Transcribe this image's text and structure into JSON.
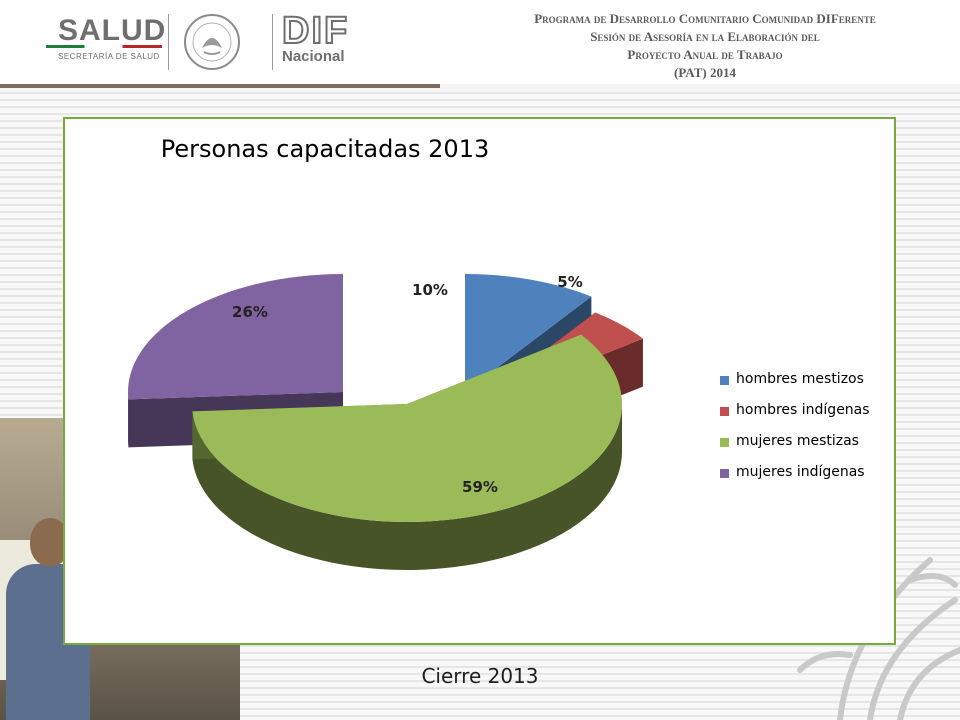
{
  "header": {
    "salud": "SALUD",
    "salud_sub": "SECRETARÍA DE SALUD",
    "dif": "DIF",
    "dif_sub": "Nacional",
    "program_lines": [
      "Programa de Desarrollo Comunitario Comunidad DIFerente",
      "Sesión de Asesoría en la Elaboración del",
      "Proyecto Anual de Trabajo",
      "(PAT) 2014"
    ]
  },
  "chart_data": {
    "type": "pie",
    "title": "Personas capacitadas 2013",
    "categories": [
      "hombres mestizos",
      "hombres indígenas",
      "mujeres mestizas",
      "mujeres indígenas"
    ],
    "values": [
      10,
      5,
      59,
      26
    ],
    "labels": [
      "10%",
      "5%",
      "59%",
      "26%"
    ],
    "colors": [
      "#4f81bd",
      "#c0504d",
      "#9bbb59",
      "#8064a2"
    ],
    "legend_position": "right",
    "style": "3d-exploded"
  },
  "footer": {
    "caption": "Cierre 2013"
  }
}
